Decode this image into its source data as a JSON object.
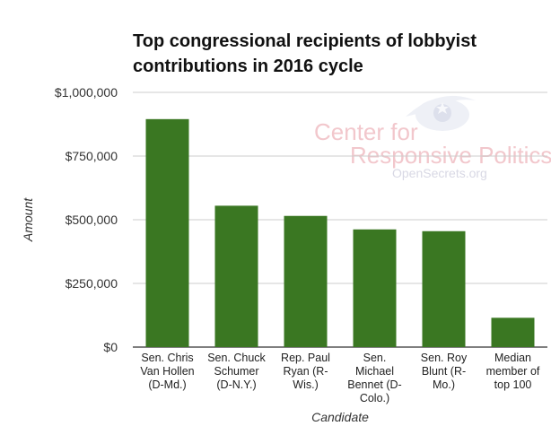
{
  "chart_data": {
    "type": "bar",
    "title_lines": [
      "Top congressional recipients of lobbyist",
      "contributions in 2016 cycle"
    ],
    "categories": [
      [
        "Sen. Chris",
        "Van Hollen",
        "(D-Md.)"
      ],
      [
        "Sen. Chuck",
        "Schumer",
        "(D-N.Y.)"
      ],
      [
        "Rep. Paul",
        "Ryan (R-",
        "Wis.)"
      ],
      [
        "Sen.",
        "Michael",
        "Bennet (D-",
        "Colo.)"
      ],
      [
        "Sen. Roy",
        "Blunt (R-",
        "Mo.)"
      ],
      [
        "Median",
        "member of",
        "top 100"
      ]
    ],
    "values": [
      895000,
      555000,
      515000,
      462000,
      455000,
      115000
    ],
    "xlabel": "Candidate",
    "ylabel": "Amount",
    "ylim": [
      0,
      1000000
    ],
    "yticks": [
      0,
      250000,
      500000,
      750000,
      1000000
    ],
    "ytick_labels": [
      "$0",
      "$250,000",
      "$500,000",
      "$750,000",
      "$1,000,000"
    ],
    "bar_color": "#3a7722",
    "grid": true,
    "legend": "none"
  },
  "watermark": {
    "line1": "Center for",
    "line2": "Responsive Politics",
    "line3": "OpenSecrets.org"
  }
}
